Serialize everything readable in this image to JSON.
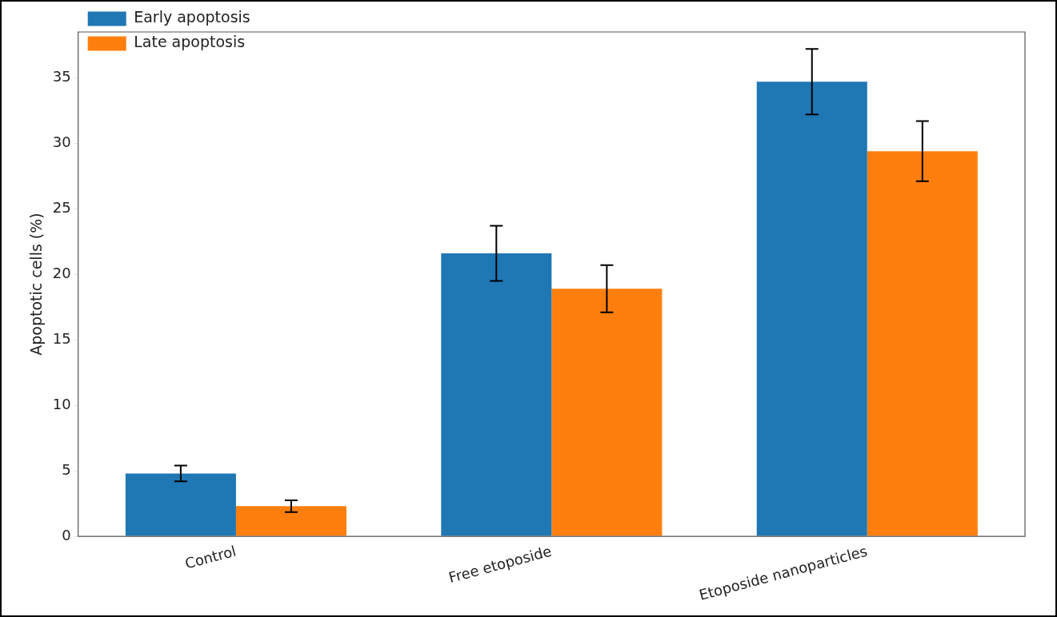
{
  "chart_data": {
    "type": "bar",
    "ylabel": "Apoptotic cells (%)",
    "categories": [
      "Control",
      "Free etoposide",
      "Etoposide nanoparticles"
    ],
    "series": [
      {
        "name": "Early apoptosis",
        "color": "#1f77b4",
        "values": [
          4.8,
          21.6,
          34.7
        ],
        "errors": [
          0.6,
          2.1,
          2.5
        ]
      },
      {
        "name": "Late apoptosis",
        "color": "#ff7f0e",
        "values": [
          2.3,
          18.9,
          29.4
        ],
        "errors": [
          0.45,
          1.8,
          2.3
        ]
      }
    ],
    "ylim": [
      0,
      38.5
    ],
    "yticks": [
      0,
      5,
      10,
      15,
      20,
      25,
      30,
      35
    ],
    "grid": false,
    "legend": "top left"
  }
}
